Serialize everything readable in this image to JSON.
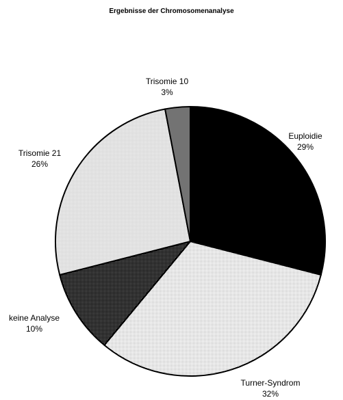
{
  "chart_data": {
    "type": "pie",
    "title": "Ergebnisse der Chromosomenanalyse",
    "slices": [
      {
        "label": "Euploidie",
        "percent_label": "29%",
        "value": 29,
        "fill": "#000000"
      },
      {
        "label": "Turner-Syndrom",
        "percent_label": "32%",
        "value": 32,
        "fill": "#ffffff"
      },
      {
        "label": "keine Analyse",
        "percent_label": "10%",
        "value": 10,
        "fill": "#2e2e2e"
      },
      {
        "label": "Trisomie 21",
        "percent_label": "26%",
        "value": 26,
        "fill": "#e6e6e6"
      },
      {
        "label": "Trisomie 10",
        "percent_label": "3%",
        "value": 3,
        "fill": "#737373"
      }
    ]
  }
}
